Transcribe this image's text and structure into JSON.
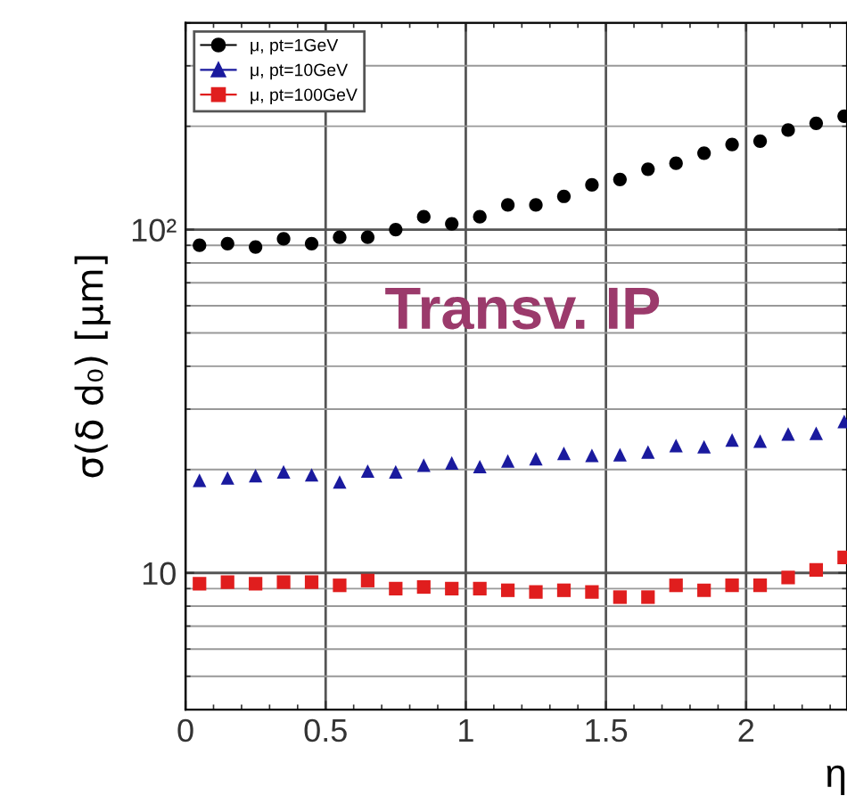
{
  "chart_data": {
    "type": "scatter",
    "xlabel": "η",
    "ylabel": "σ(δ d₀) [μm]",
    "x": [
      0.05,
      0.15,
      0.25,
      0.35,
      0.45,
      0.55,
      0.65,
      0.75,
      0.85,
      0.95,
      1.05,
      1.15,
      1.25,
      1.35,
      1.45,
      1.55,
      1.65,
      1.75,
      1.85,
      1.95,
      2.05,
      2.15,
      2.25,
      2.35
    ],
    "series": [
      {
        "name": "μ, pt=1GeV",
        "color": "#000000",
        "marker": "circle",
        "values": [
          90,
          91,
          89,
          94,
          91,
          95,
          95,
          100,
          109,
          104,
          109,
          118,
          118,
          125,
          135,
          140,
          150,
          156,
          167,
          177,
          181,
          195,
          204,
          214
        ]
      },
      {
        "name": "μ, pt=10GeV",
        "color": "#1a1a9e",
        "marker": "triangle",
        "values": [
          18.6,
          18.9,
          19.2,
          19.7,
          19.3,
          18.4,
          19.8,
          19.7,
          20.6,
          20.9,
          20.4,
          21.2,
          21.5,
          22.3,
          22.0,
          22.1,
          22.5,
          23.5,
          23.3,
          24.4,
          24.2,
          25.4,
          25.5,
          27.6
        ]
      },
      {
        "name": "μ, pt=100GeV",
        "color": "#e01e1e",
        "marker": "square",
        "values": [
          9.3,
          9.4,
          9.3,
          9.4,
          9.4,
          9.2,
          9.5,
          9.0,
          9.1,
          9.0,
          9.0,
          8.9,
          8.8,
          8.9,
          8.8,
          8.5,
          8.5,
          9.2,
          8.9,
          9.2,
          9.2,
          9.7,
          10.2,
          11.1
        ]
      }
    ],
    "log": "y",
    "xlim": [
      0,
      2.36
    ],
    "ylim": [
      4,
      400
    ],
    "xticks": [
      0,
      0.5,
      1,
      1.5,
      2
    ],
    "yticks": [
      10,
      {
        "value": 100,
        "label": "10²"
      }
    ],
    "grid": true,
    "legend": "top left",
    "annotations": [
      "Transv. IP"
    ]
  }
}
